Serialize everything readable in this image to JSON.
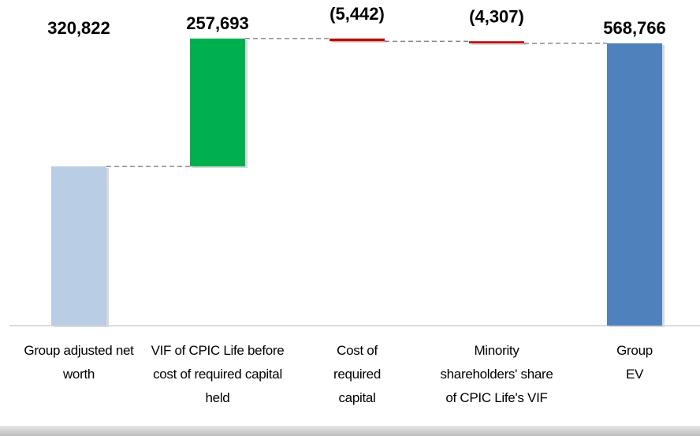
{
  "chart_data": {
    "type": "waterfall",
    "categories": [
      "Group adjusted net worth",
      "VIF of CPIC Life before cost of required capital held",
      "Cost of required capital",
      "Minority shareholders' share of CPIC Life's VIF",
      "Group EV"
    ],
    "values": [
      320822,
      257693,
      -5442,
      -4307,
      568766
    ],
    "value_labels": [
      "320,822",
      "257,693",
      "(5,442)",
      "(4,307)",
      "568,766"
    ],
    "measures": [
      "absolute",
      "relative",
      "relative",
      "relative",
      "total"
    ],
    "colors": [
      "#b9cde5",
      "#00b050",
      "#c00000",
      "#c00000",
      "#4f81bd"
    ]
  }
}
